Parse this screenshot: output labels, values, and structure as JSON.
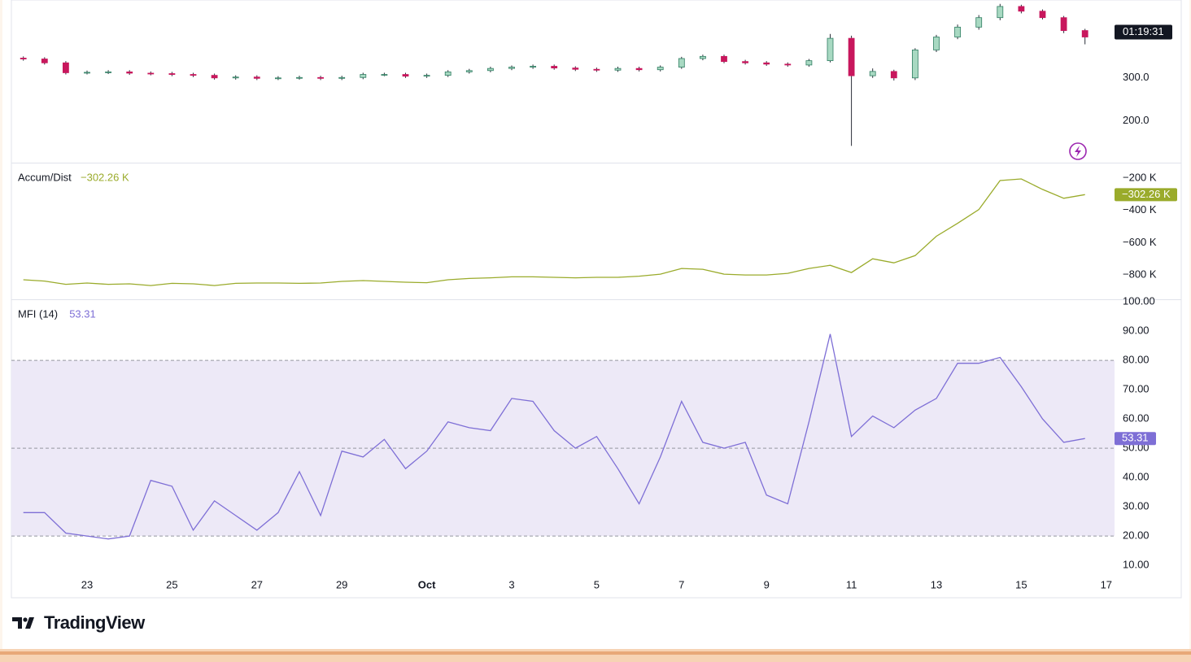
{
  "chart_data": [
    {
      "type": "candlestick",
      "open": [
        346,
        344,
        335,
        312,
        313,
        314,
        311,
        310,
        308,
        306,
        300,
        302,
        299,
        300,
        301,
        299,
        301,
        308,
        308,
        304,
        306,
        314,
        317,
        322,
        325,
        327,
        323,
        320,
        318,
        322,
        319,
        325,
        345,
        350,
        338,
        335,
        332,
        330,
        340,
        392,
        305,
        315,
        300,
        365,
        395,
        418,
        440,
        466,
        455,
        440,
        410,
        null
      ],
      "high": [
        350,
        348,
        339,
        317,
        318,
        318,
        315,
        314,
        312,
        310,
        306,
        306,
        304,
        305,
        305,
        305,
        312,
        312,
        312,
        310,
        318,
        321,
        326,
        329,
        331,
        331,
        327,
        324,
        326,
        326,
        329,
        349,
        354,
        354,
        342,
        339,
        336,
        344,
        402,
        398,
        322,
        319,
        369,
        400,
        424,
        446,
        472,
        470,
        459,
        444,
        414,
        null
      ],
      "low": [
        340,
        331,
        308,
        308,
        309,
        307,
        306,
        304,
        302,
        296,
        296,
        295,
        295,
        296,
        295,
        295,
        297,
        304,
        300,
        300,
        302,
        310,
        313,
        318,
        321,
        319,
        316,
        314,
        314,
        315,
        315,
        321,
        341,
        334,
        331,
        328,
        326,
        326,
        336,
        142,
        300,
        294,
        295,
        360,
        390,
        412,
        434,
        450,
        436,
        404,
        378,
        null
      ],
      "close": [
        344,
        335,
        312,
        313,
        314,
        311,
        310,
        308,
        306,
        300,
        302,
        299,
        300,
        301,
        299,
        301,
        308,
        308,
        304,
        306,
        314,
        317,
        322,
        325,
        327,
        323,
        320,
        318,
        322,
        319,
        325,
        345,
        350,
        338,
        335,
        332,
        330,
        340,
        392,
        305,
        315,
        300,
        365,
        395,
        418,
        440,
        466,
        455,
        440,
        410,
        395,
        null
      ],
      "up_color": "#a8d9c2",
      "down_color": "#c8175d",
      "wick_color": "#2a2e39",
      "ylim": [
        105,
        481
      ],
      "yticks": [
        {
          "value": 300,
          "label": "300.0"
        },
        {
          "value": 200,
          "label": "200.0"
        }
      ],
      "countdown": "01:19:31"
    },
    {
      "type": "line",
      "series": [
        {
          "name": "Accum/Dist",
          "color": "#9aab2b",
          "values": [
            -830,
            -838,
            -858,
            -850,
            -858,
            -855,
            -866,
            -852,
            -855,
            -866,
            -852,
            -850,
            -850,
            -852,
            -850,
            -840,
            -835,
            -840,
            -845,
            -848,
            -830,
            -822,
            -818,
            -812,
            -812,
            -815,
            -818,
            -815,
            -815,
            -808,
            -795,
            -760,
            -765,
            -795,
            -800,
            -800,
            -790,
            -760,
            -740,
            -785,
            -700,
            -725,
            -680,
            -560,
            -480,
            -395,
            -215,
            -205,
            -270,
            -325,
            -302.26,
            null
          ],
          "value_labels": [
            null,
            null,
            null,
            null,
            null,
            null,
            null,
            null,
            null,
            null,
            null,
            null,
            null,
            null,
            null,
            null,
            null,
            null,
            null,
            null,
            null,
            null,
            null,
            null,
            null,
            null,
            null,
            null,
            null,
            null,
            null,
            null,
            null,
            null,
            null,
            null,
            null,
            null,
            null,
            null,
            null,
            null,
            null,
            null,
            null,
            null,
            null,
            null,
            null,
            null,
            "−302.26 K",
            null
          ]
        }
      ],
      "ylim": [
        -951,
        -109
      ],
      "yticks": [
        {
          "value": -200,
          "label": "−200 K"
        },
        {
          "value": -400,
          "label": "−400 K"
        },
        {
          "value": -600,
          "label": "−600 K"
        },
        {
          "value": -800,
          "label": "−800 K"
        }
      ]
    },
    {
      "type": "line",
      "categories": [
        null,
        null,
        null,
        "23",
        null,
        null,
        null,
        "25",
        null,
        null,
        null,
        "27",
        null,
        null,
        null,
        "29",
        null,
        null,
        null,
        "Oct",
        null,
        null,
        null,
        "3",
        null,
        null,
        null,
        "5",
        null,
        null,
        null,
        "7",
        null,
        null,
        null,
        "9",
        null,
        null,
        null,
        "11",
        null,
        null,
        null,
        "13",
        null,
        null,
        null,
        "15",
        null,
        null,
        null,
        "17"
      ],
      "series": [
        {
          "name": "MFI (14)",
          "color": "#7e6fd6",
          "values": [
            28,
            28,
            21,
            20,
            19,
            20,
            39,
            37,
            22,
            32,
            27,
            22,
            28,
            42,
            27,
            49,
            47,
            53,
            43,
            49,
            59,
            57,
            56,
            67,
            66,
            56,
            50,
            54,
            43,
            31,
            47,
            66,
            52,
            50,
            52,
            34,
            31,
            59,
            89,
            54,
            61,
            57,
            63,
            67,
            79,
            79,
            81,
            71,
            60,
            52,
            53.31,
            null
          ]
        }
      ],
      "bands": [
        80,
        50,
        20
      ],
      "band_fill": "#ede9f7",
      "ylim": [
        -1.1,
        100.6
      ],
      "yticks": [
        {
          "value": 100,
          "label": "100.00"
        },
        {
          "value": 90,
          "label": "90.00"
        },
        {
          "value": 80,
          "label": "80.00"
        },
        {
          "value": 70,
          "label": "70.00"
        },
        {
          "value": 60,
          "label": "60.00"
        },
        {
          "value": 50,
          "label": "50.00"
        },
        {
          "value": 40,
          "label": "40.00"
        },
        {
          "value": 30,
          "label": "30.00"
        },
        {
          "value": 20,
          "label": "20.00"
        },
        {
          "value": 10,
          "label": "10.00"
        }
      ]
    }
  ],
  "brand": "TradingView"
}
